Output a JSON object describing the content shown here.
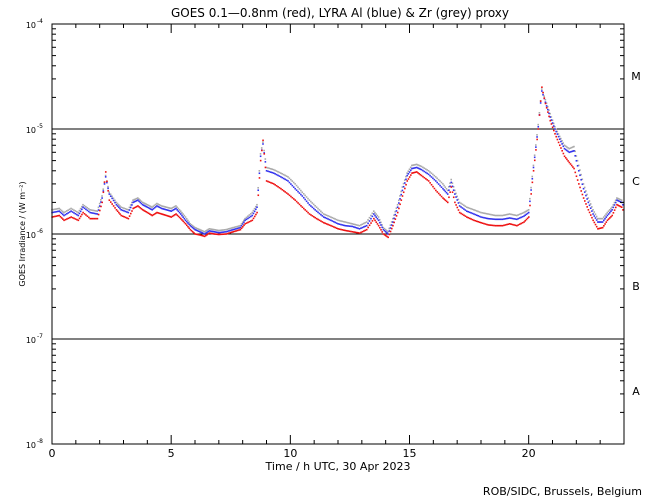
{
  "chart_data": {
    "type": "scatter",
    "title": "GOES 0.1—0.8nm (red), LYRA Al (blue) & Zr (grey) proxy",
    "xlabel": "Time / h UTC, 30 Apr 2023",
    "ylabel": "GOES Irradiance / (W m⁻²)",
    "xlim": [
      0,
      24
    ],
    "ylim": [
      1e-08,
      0.0001
    ],
    "yscale": "log",
    "x_ticks": [
      0,
      5,
      10,
      15,
      20
    ],
    "x_tick_labels": [
      "0",
      "5",
      "10",
      "15",
      "20"
    ],
    "y_ticks": [
      1e-08,
      1e-07,
      1e-06,
      1e-05,
      0.0001
    ],
    "y_tick_labels": [
      {
        "base": "10",
        "exp": "-8"
      },
      {
        "base": "10",
        "exp": "-7"
      },
      {
        "base": "10",
        "exp": "-6"
      },
      {
        "base": "10",
        "exp": "-5"
      },
      {
        "base": "10",
        "exp": "-4"
      }
    ],
    "grid": false,
    "flare_class_lines": [
      1e-07,
      1e-06,
      1e-05
    ],
    "flare_classes": [
      {
        "label": "A",
        "y": 3.2e-08
      },
      {
        "label": "B",
        "y": 3.2e-07
      },
      {
        "label": "C",
        "y": 3.2e-06
      },
      {
        "label": "M",
        "y": 3.2e-05
      }
    ],
    "series": [
      {
        "color": "#aaaaaa",
        "x": [
          0,
          0.3,
          0.5,
          0.8,
          1.1,
          1.3,
          1.6,
          1.9,
          2.1,
          2.25,
          2.4,
          2.7,
          2.9,
          3.2,
          3.4,
          3.6,
          3.8,
          4.0,
          4.2,
          4.4,
          4.6,
          4.8,
          5.0,
          5.2,
          5.4,
          5.6,
          5.8,
          6.0,
          6.2,
          6.4,
          6.6,
          6.8,
          7.0,
          7.3,
          7.6,
          7.9,
          8.1,
          8.4,
          8.6,
          8.75,
          8.85,
          9.0,
          9.3,
          9.6,
          9.9,
          10.2,
          10.5,
          10.8,
          11.1,
          11.4,
          11.7,
          12.0,
          12.3,
          12.6,
          12.9,
          13.2,
          13.5,
          13.7,
          13.9,
          14.1,
          14.3,
          14.5,
          14.7,
          14.9,
          15.1,
          15.3,
          15.5,
          15.8,
          16.1,
          16.4,
          16.6,
          16.75,
          16.9,
          17.1,
          17.4,
          17.7,
          18.0,
          18.3,
          18.6,
          18.9,
          19.2,
          19.5,
          19.8,
          20.0,
          20.2,
          20.4,
          20.55,
          20.7,
          20.9,
          21.1,
          21.3,
          21.5,
          21.7,
          21.9,
          22.1,
          22.3,
          22.5,
          22.7,
          22.9,
          23.1,
          23.3,
          23.5,
          23.7,
          23.9,
          24.0
        ],
        "y": [
          1.7e-06,
          1.75e-06,
          1.6e-06,
          1.75e-06,
          1.6e-06,
          1.9e-06,
          1.7e-06,
          1.65e-06,
          2.3e-06,
          3.6e-06,
          2.5e-06,
          2e-06,
          1.8e-06,
          1.7e-06,
          2.1e-06,
          2.2e-06,
          2e-06,
          1.9e-06,
          1.8e-06,
          1.95e-06,
          1.85e-06,
          1.8e-06,
          1.75e-06,
          1.85e-06,
          1.65e-06,
          1.45e-06,
          1.25e-06,
          1.15e-06,
          1.1e-06,
          1.05e-06,
          1.12e-06,
          1.1e-06,
          1.08e-06,
          1.1e-06,
          1.15e-06,
          1.2e-06,
          1.4e-06,
          1.6e-06,
          1.9e-06,
          5.8e-06,
          7.5e-06,
          4.3e-06,
          4.1e-06,
          3.8e-06,
          3.5e-06,
          3e-06,
          2.5e-06,
          2.1e-06,
          1.8e-06,
          1.55e-06,
          1.45e-06,
          1.35e-06,
          1.3e-06,
          1.25e-06,
          1.2e-06,
          1.3e-06,
          1.65e-06,
          1.45e-06,
          1.15e-06,
          1.05e-06,
          1.4e-06,
          1.9e-06,
          2.8e-06,
          3.8e-06,
          4.5e-06,
          4.6e-06,
          4.4e-06,
          4e-06,
          3.5e-06,
          3e-06,
          2.6e-06,
          3.3e-06,
          2.6e-06,
          2e-06,
          1.8e-06,
          1.7e-06,
          1.6e-06,
          1.55e-06,
          1.5e-06,
          1.5e-06,
          1.55e-06,
          1.5e-06,
          1.6e-06,
          1.7e-06,
          4.5e-06,
          1.1e-05,
          2.4e-05,
          1.9e-05,
          1.4e-05,
          1.05e-05,
          8.5e-06,
          7e-06,
          6.5e-06,
          6.8e-06,
          4.5e-06,
          3e-06,
          2.2e-06,
          1.7e-06,
          1.4e-06,
          1.4e-06,
          1.6e-06,
          1.8e-06,
          2.2e-06,
          2.1e-06,
          1.9e-06
        ]
      },
      {
        "color": "#3333ee",
        "x": [
          0,
          0.3,
          0.5,
          0.8,
          1.1,
          1.3,
          1.6,
          1.9,
          2.1,
          2.25,
          2.4,
          2.7,
          2.9,
          3.2,
          3.4,
          3.6,
          3.8,
          4.0,
          4.2,
          4.4,
          4.6,
          4.8,
          5.0,
          5.2,
          5.4,
          5.6,
          5.8,
          6.0,
          6.2,
          6.4,
          6.6,
          6.8,
          7.0,
          7.3,
          7.6,
          7.9,
          8.1,
          8.4,
          8.6,
          8.75,
          8.85,
          9.0,
          9.3,
          9.6,
          9.9,
          10.2,
          10.5,
          10.8,
          11.1,
          11.4,
          11.7,
          12.0,
          12.3,
          12.6,
          12.9,
          13.2,
          13.5,
          13.7,
          13.9,
          14.1,
          14.3,
          14.5,
          14.7,
          14.9,
          15.1,
          15.3,
          15.5,
          15.8,
          16.1,
          16.4,
          16.6,
          16.75,
          16.9,
          17.1,
          17.4,
          17.7,
          18.0,
          18.3,
          18.6,
          18.9,
          19.2,
          19.5,
          19.8,
          20.0,
          20.2,
          20.4,
          20.55,
          20.7,
          20.9,
          21.1,
          21.3,
          21.5,
          21.7,
          21.9,
          22.1,
          22.3,
          22.5,
          22.7,
          22.9,
          23.1,
          23.3,
          23.5,
          23.7,
          23.9,
          24.0
        ],
        "y": [
          1.6e-06,
          1.65e-06,
          1.5e-06,
          1.65e-06,
          1.5e-06,
          1.8e-06,
          1.6e-06,
          1.55e-06,
          2.2e-06,
          3.5e-06,
          2.4e-06,
          1.9e-06,
          1.7e-06,
          1.6e-06,
          2e-06,
          2.1e-06,
          1.9e-06,
          1.8e-06,
          1.7e-06,
          1.85e-06,
          1.75e-06,
          1.7e-06,
          1.65e-06,
          1.75e-06,
          1.55e-06,
          1.35e-06,
          1.2e-06,
          1.1e-06,
          1.05e-06,
          1e-06,
          1.07e-06,
          1.05e-06,
          1.03e-06,
          1.05e-06,
          1.1e-06,
          1.15e-06,
          1.35e-06,
          1.5e-06,
          1.8e-06,
          5.5e-06,
          7.2e-06,
          4e-06,
          3.8e-06,
          3.5e-06,
          3.2e-06,
          2.7e-06,
          2.3e-06,
          1.9e-06,
          1.65e-06,
          1.45e-06,
          1.35e-06,
          1.25e-06,
          1.2e-06,
          1.18e-06,
          1.12e-06,
          1.2e-06,
          1.55e-06,
          1.35e-06,
          1.1e-06,
          1e-06,
          1.3e-06,
          1.8e-06,
          2.6e-06,
          3.6e-06,
          4.2e-06,
          4.3e-06,
          4.1e-06,
          3.7e-06,
          3.2e-06,
          2.7e-06,
          2.4e-06,
          3.1e-06,
          2.4e-06,
          1.85e-06,
          1.65e-06,
          1.55e-06,
          1.45e-06,
          1.4e-06,
          1.38e-06,
          1.38e-06,
          1.42e-06,
          1.38e-06,
          1.48e-06,
          1.6e-06,
          4.3e-06,
          1.05e-05,
          2.3e-05,
          1.8e-05,
          1.3e-05,
          1e-05,
          8e-06,
          6.5e-06,
          6e-06,
          6.2e-06,
          4e-06,
          2.7e-06,
          2e-06,
          1.55e-06,
          1.3e-06,
          1.3e-06,
          1.5e-06,
          1.7e-06,
          2.1e-06,
          2e-06,
          1.8e-06
        ]
      },
      {
        "color": "#ee1111",
        "x": [
          0,
          0.3,
          0.5,
          0.8,
          1.1,
          1.3,
          1.6,
          1.9,
          2.1,
          2.25,
          2.4,
          2.7,
          2.9,
          3.2,
          3.4,
          3.6,
          3.8,
          4.0,
          4.2,
          4.4,
          4.6,
          4.8,
          5.0,
          5.2,
          5.4,
          5.6,
          5.8,
          6.0,
          6.2,
          6.4,
          6.6,
          6.8,
          7.0,
          7.3,
          7.6,
          7.9,
          8.1,
          8.4,
          8.6,
          8.75,
          8.85,
          9.0,
          9.3,
          9.6,
          9.9,
          10.2,
          10.5,
          10.8,
          11.1,
          11.4,
          11.7,
          12.0,
          12.3,
          12.6,
          12.9,
          13.2,
          13.5,
          13.7,
          13.9,
          14.1,
          14.3,
          14.5,
          14.7,
          14.9,
          15.1,
          15.3,
          15.5,
          15.8,
          16.1,
          16.4,
          16.6,
          16.75,
          16.9,
          17.1,
          17.4,
          17.7,
          18.0,
          18.3,
          18.6,
          18.9,
          19.2,
          19.5,
          19.8,
          20.0,
          20.2,
          20.4,
          20.55,
          20.7,
          20.9,
          21.1,
          21.3,
          21.5,
          21.7,
          21.9,
          22.1,
          22.3,
          22.5,
          22.7,
          22.9,
          23.1,
          23.3,
          23.5,
          23.7,
          23.9,
          24.0
        ],
        "y": [
          1.45e-06,
          1.5e-06,
          1.35e-06,
          1.45e-06,
          1.35e-06,
          1.6e-06,
          1.4e-06,
          1.4e-06,
          2e-06,
          3.9e-06,
          2.1e-06,
          1.7e-06,
          1.5e-06,
          1.4e-06,
          1.75e-06,
          1.85e-06,
          1.7e-06,
          1.6e-06,
          1.5e-06,
          1.6e-06,
          1.55e-06,
          1.5e-06,
          1.45e-06,
          1.55e-06,
          1.4e-06,
          1.25e-06,
          1.1e-06,
          1e-06,
          9.8e-07,
          9.5e-07,
          1.02e-06,
          1e-06,
          9.9e-07,
          1e-06,
          1.05e-06,
          1.1e-06,
          1.25e-06,
          1.35e-06,
          1.6e-06,
          5e-06,
          7.8e-06,
          3.2e-06,
          3e-06,
          2.7e-06,
          2.4e-06,
          2.1e-06,
          1.8e-06,
          1.55e-06,
          1.4e-06,
          1.28e-06,
          1.2e-06,
          1.12e-06,
          1.08e-06,
          1.05e-06,
          1.02e-06,
          1.1e-06,
          1.4e-06,
          1.2e-06,
          1e-06,
          9.3e-07,
          1.2e-06,
          1.6e-06,
          2.3e-06,
          3.2e-06,
          3.8e-06,
          3.9e-06,
          3.6e-06,
          3.2e-06,
          2.6e-06,
          2.2e-06,
          2e-06,
          2.8e-06,
          2e-06,
          1.6e-06,
          1.45e-06,
          1.35e-06,
          1.28e-06,
          1.22e-06,
          1.2e-06,
          1.2e-06,
          1.25e-06,
          1.2e-06,
          1.3e-06,
          1.45e-06,
          4e-06,
          1e-05,
          2.5e-05,
          1.75e-05,
          1.2e-05,
          9e-06,
          7e-06,
          5.5e-06,
          4.8e-06,
          4.2e-06,
          3e-06,
          2.2e-06,
          1.7e-06,
          1.35e-06,
          1.12e-06,
          1.15e-06,
          1.35e-06,
          1.5e-06,
          1.9e-06,
          1.8e-06,
          1.6e-06
        ]
      }
    ],
    "credit": "ROB/SIDC, Brussels, Belgium"
  }
}
